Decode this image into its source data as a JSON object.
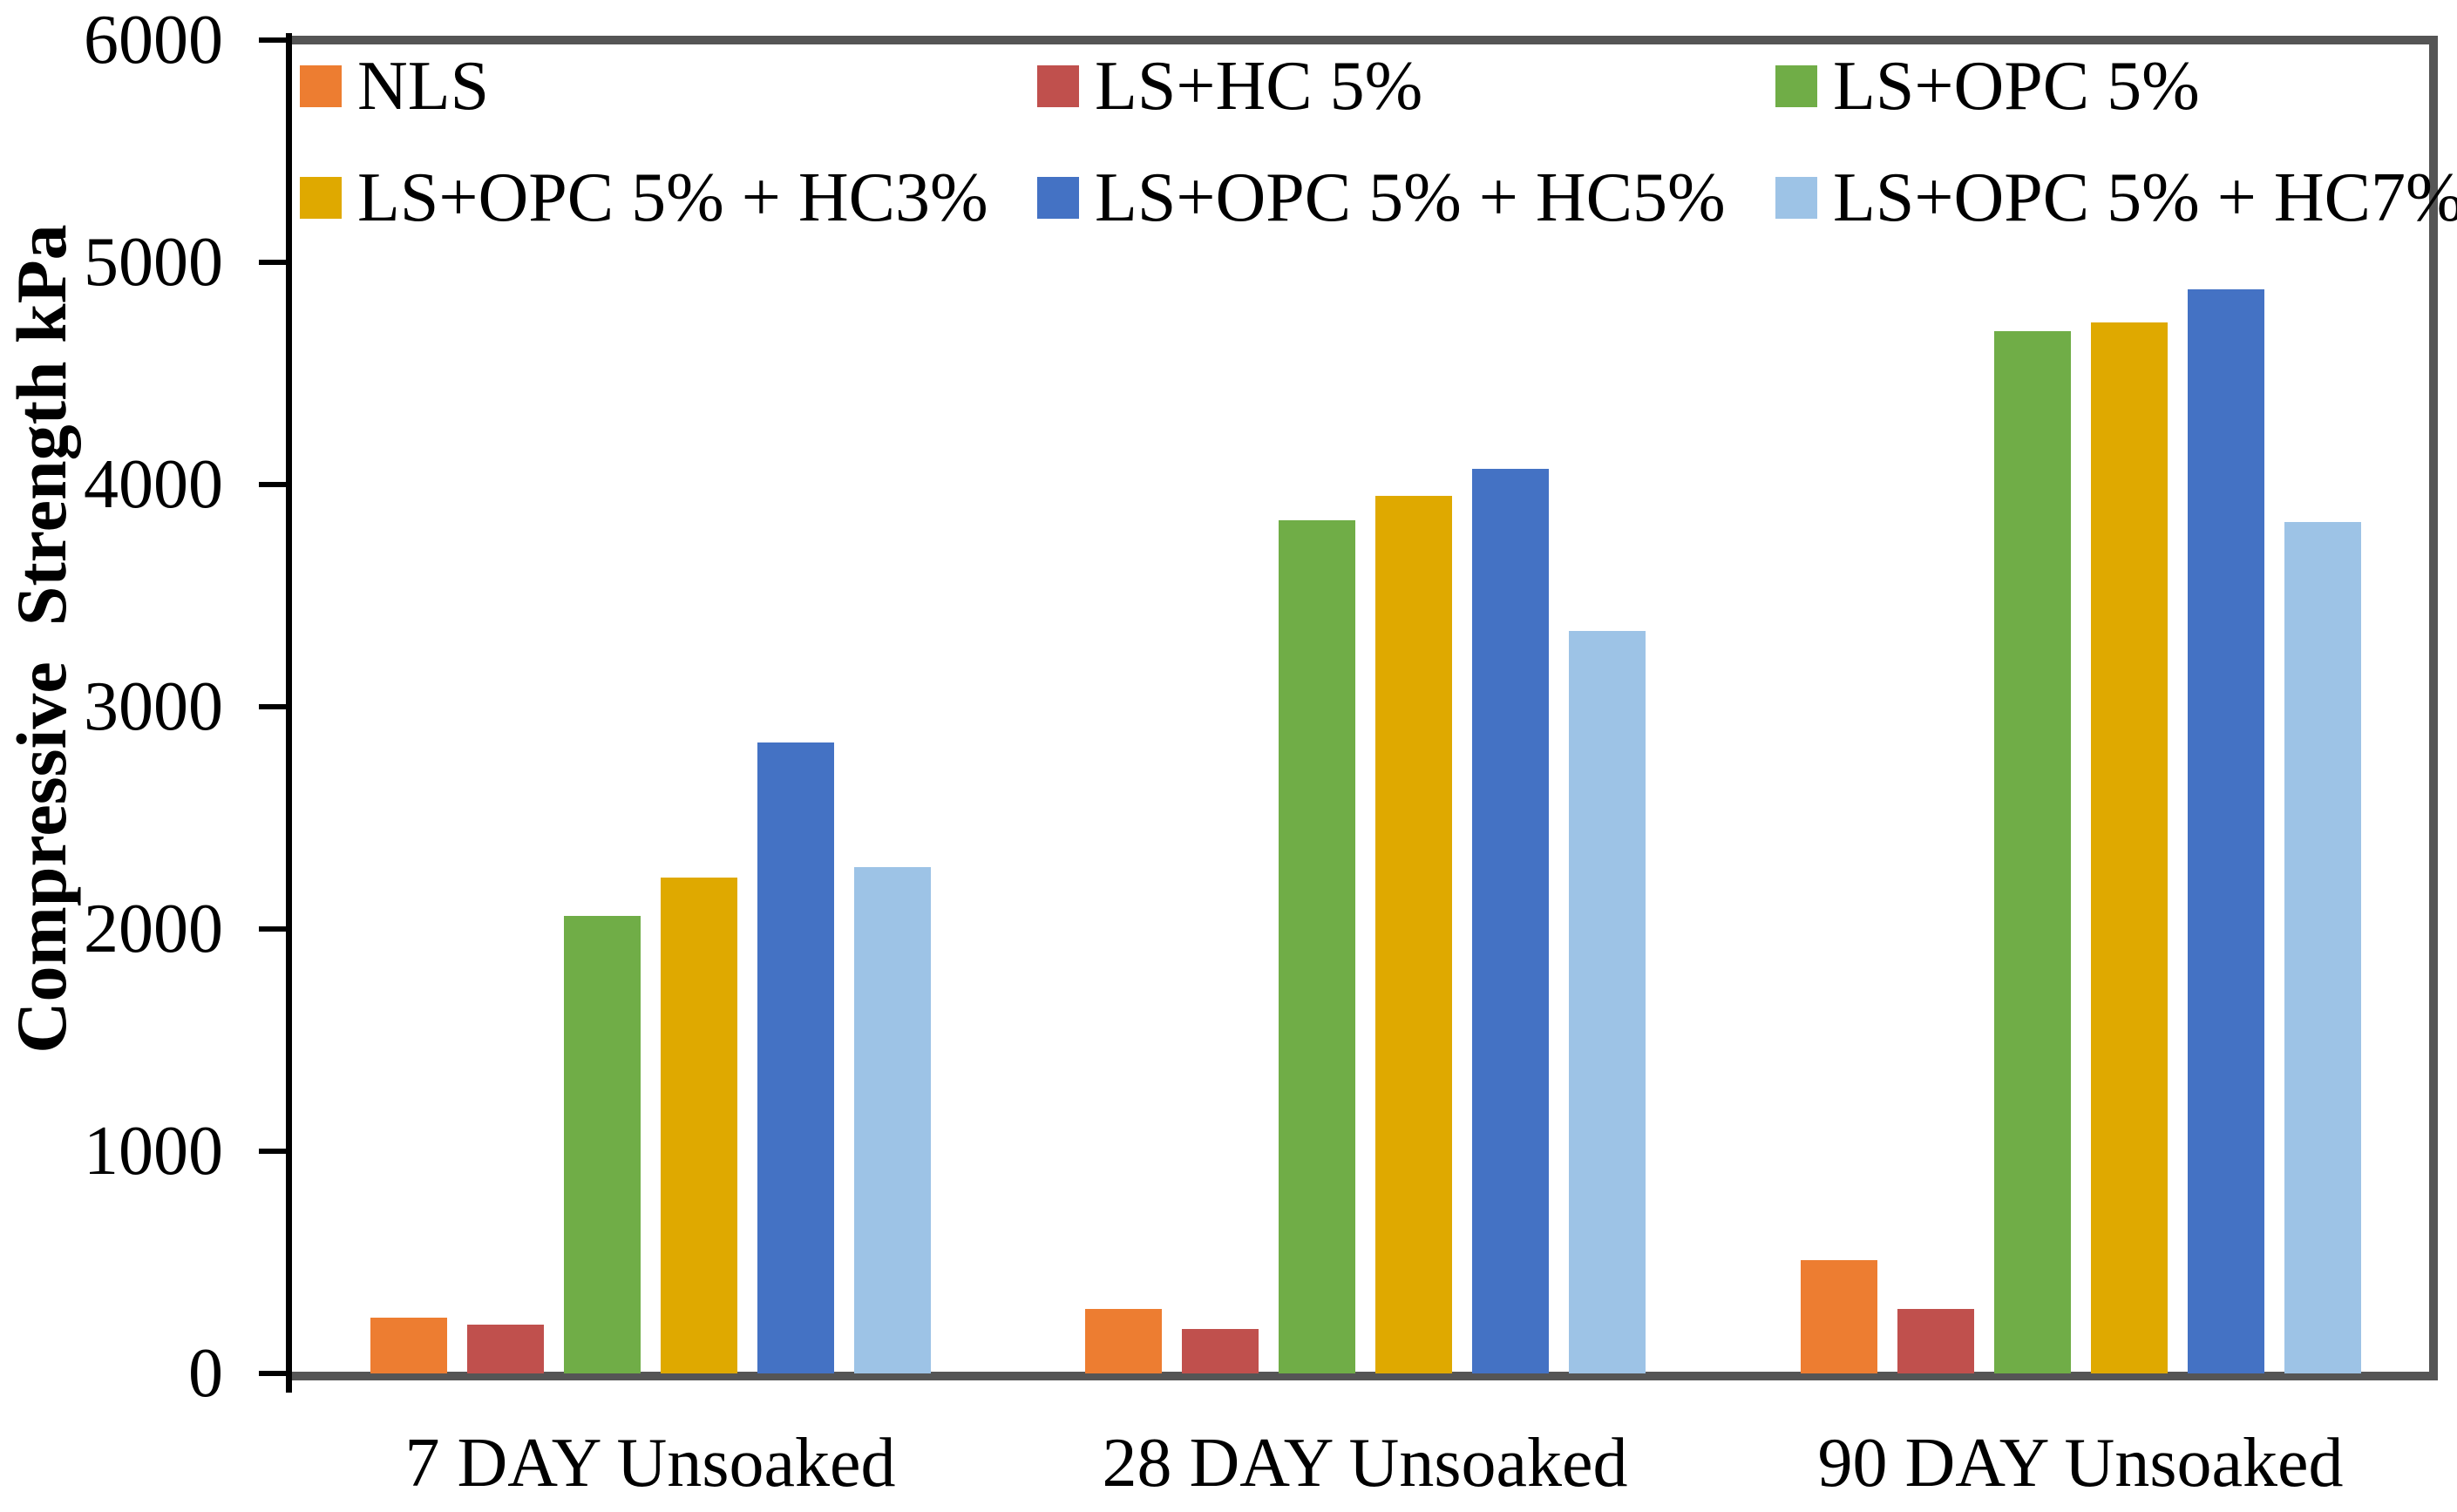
{
  "chart_data": {
    "type": "bar",
    "title": "",
    "ylabel": "Compressive  Strength kPa",
    "xlabel": "",
    "categories": [
      "7 DAY Unsoaked",
      "28 DAY Unsoaked",
      "90 DAY Unsoaked"
    ],
    "series": [
      {
        "name": "NLS",
        "color": "#ED7D31",
        "values": [
          250,
          290,
          510
        ]
      },
      {
        "name": "LS+HC 5%",
        "color": "#C0504D",
        "values": [
          220,
          200,
          290
        ]
      },
      {
        "name": "LS+OPC 5%",
        "color": "#70AD47",
        "values": [
          2060,
          3840,
          4690
        ]
      },
      {
        "name": "LS+OPC 5% + HC3%",
        "color": "#DFA900",
        "values": [
          2230,
          3950,
          4730
        ]
      },
      {
        "name": "LS+OPC 5% + HC5%",
        "color": "#4472C4",
        "values": [
          2840,
          4070,
          4880
        ]
      },
      {
        "name": "LS+OPC 5% + HC7%",
        "color": "#9DC3E6",
        "values": [
          2280,
          3340,
          3830
        ]
      }
    ],
    "y_ticks": [
      0,
      1000,
      2000,
      3000,
      4000,
      5000,
      6000
    ],
    "ylim": [
      0,
      6000
    ],
    "grid": false,
    "legend": {
      "position": "top-left-inside",
      "rows": 2,
      "columns": 3
    },
    "axis_color": "#000000",
    "frame_color": "#555555"
  }
}
